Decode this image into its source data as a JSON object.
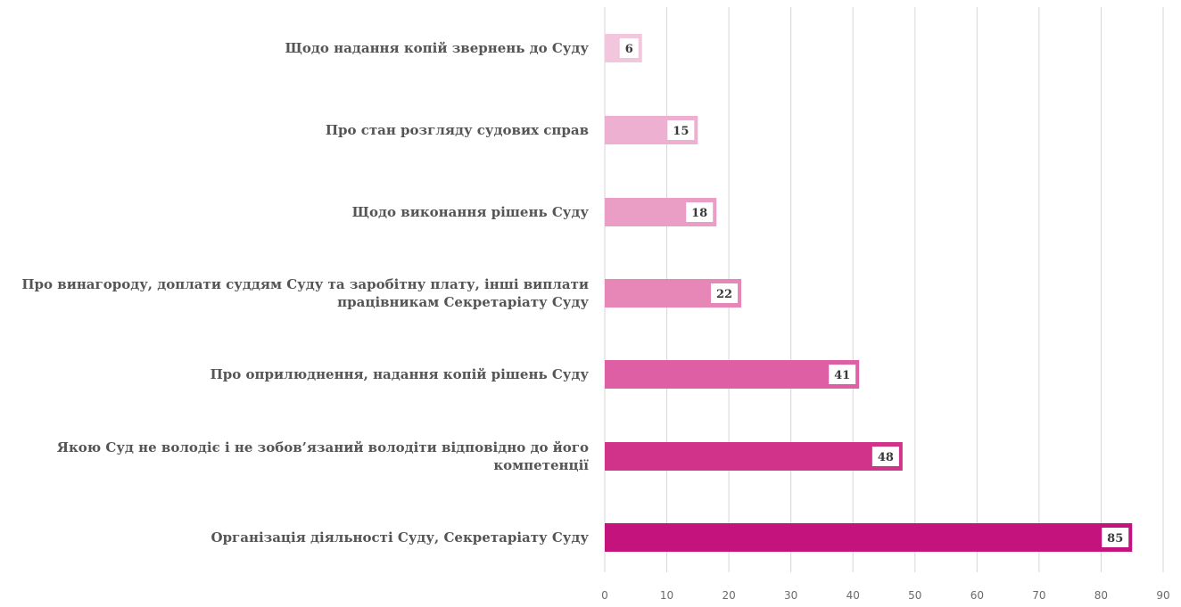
{
  "chart_data": {
    "type": "bar",
    "orientation": "horizontal",
    "categories": [
      [
        "Щодо надання копій звернень до Суду"
      ],
      [
        "Про стан розгляду судових справ"
      ],
      [
        "Щодо виконання рішень Суду"
      ],
      [
        "Про винагороду, доплати суддям Суду та заробітну плату, інші виплати",
        "працівникам Секретаріату Суду"
      ],
      [
        "Про оприлюднення, надання копій рішень Суду"
      ],
      [
        "Якою Суд не володіє і не зобов’язаний володіти відповідно до його",
        "компетенції"
      ],
      [
        "Організація діяльності Суду, Секретаріату Суду"
      ]
    ],
    "values": [
      6,
      15,
      18,
      22,
      41,
      48,
      85
    ],
    "bar_colors": [
      "#f2c6dc",
      "#eeb0d0",
      "#ea9ec6",
      "#e687b8",
      "#de5fa3",
      "#d2338a",
      "#c4137c"
    ],
    "xlim": [
      0,
      90
    ],
    "xticks": [
      0,
      10,
      20,
      30,
      40,
      50,
      60,
      70,
      80,
      90
    ],
    "grid": "vertical",
    "data_labels": true,
    "title": "",
    "xlabel": "",
    "ylabel": ""
  }
}
